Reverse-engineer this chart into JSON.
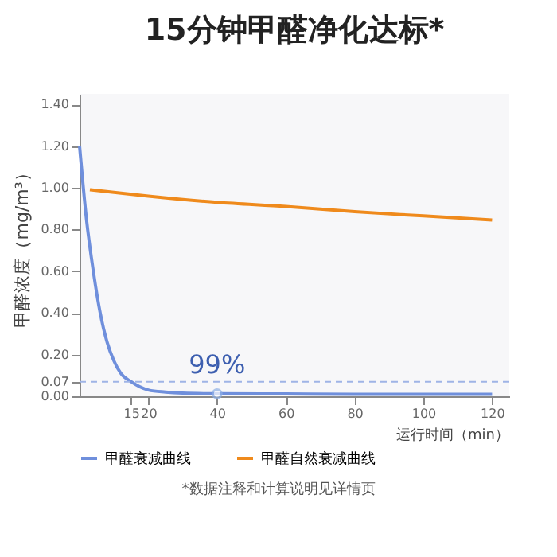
{
  "chart_data": {
    "type": "line",
    "title": "15分钟甲醛净化达标*",
    "xlabel": "运行时间（min）",
    "ylabel": "甲醛浓度（mg/m³）",
    "xlim": [
      0,
      125
    ],
    "xticks": [
      15,
      20,
      40,
      60,
      80,
      100,
      120
    ],
    "ylim": [
      0,
      1.45
    ],
    "yticks": [
      {
        "value": 0,
        "label": "0.00"
      },
      0.07,
      {
        "value": 0.2,
        "label": "0.20"
      },
      {
        "value": 0.4,
        "label": "0.40"
      },
      {
        "value": 0.6,
        "label": "0.60"
      },
      {
        "value": 0.8,
        "label": "0.80"
      },
      {
        "value": 1.0,
        "label": "1.00"
      },
      {
        "value": 1.2,
        "label": "1.20"
      },
      {
        "value": 1.4,
        "label": "1.40"
      }
    ],
    "series": [
      {
        "name": "甲醛衰减曲线",
        "color": "#6f8fdc",
        "x": [
          0,
          2,
          4,
          6,
          8,
          10,
          12,
          15,
          20,
          25,
          30,
          40,
          60,
          80,
          100,
          120
        ],
        "values": [
          1.2,
          0.85,
          0.6,
          0.4,
          0.26,
          0.17,
          0.11,
          0.07,
          0.03,
          0.02,
          0.015,
          0.012,
          0.011,
          0.01,
          0.01,
          0.01
        ]
      },
      {
        "name": "甲醛自然衰减曲线",
        "color": "#ef8a1c",
        "x": [
          3,
          20,
          40,
          60,
          80,
          100,
          120
        ],
        "values": [
          0.99,
          0.96,
          0.93,
          0.91,
          0.885,
          0.865,
          0.845
        ]
      }
    ],
    "ref_lines": [
      {
        "axis": "y",
        "value": 0.07,
        "color": "#9fb4e6",
        "line_style": "dashed"
      }
    ],
    "annotations": [
      {
        "text": "99%",
        "x": 40,
        "y": 0.012
      },
      "*数据注释和计算说明见详情页"
    ],
    "legend": "bottom",
    "marker": "none",
    "line_style": "solid"
  }
}
